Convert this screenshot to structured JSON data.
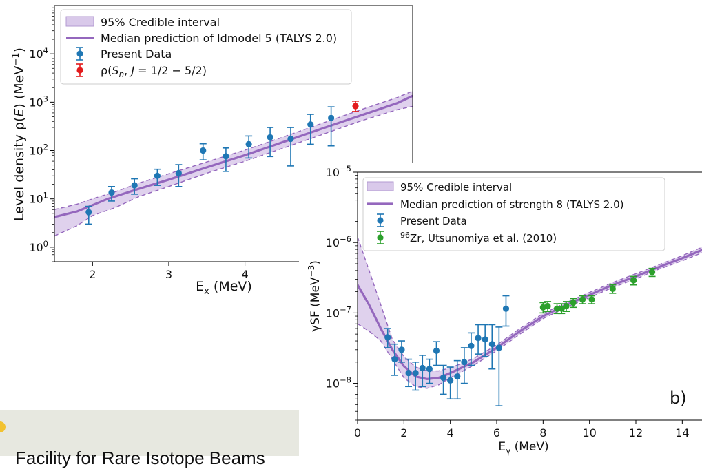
{
  "chart_data": [
    {
      "type": "scatter",
      "title": "",
      "xlabel": "E_x (MeV)",
      "ylabel": "Level density ρ(E) (MeV^-1)",
      "xscale": "linear",
      "yscale": "log",
      "xlim": [
        1.5,
        6.2
      ],
      "ylim": [
        0.5,
        100000
      ],
      "xticks": [
        "2",
        "3",
        "4"
      ],
      "yticks": [
        "10^0",
        "10^1",
        "10^2",
        "10^3",
        "10^4"
      ],
      "legend_position": "upper-left",
      "legend": [
        {
          "label": "95% Credible interval",
          "kind": "band",
          "color": "#cdb8e3"
        },
        {
          "label": "Median prediction of ldmodel 5 (TALYS 2.0)",
          "kind": "line",
          "color": "#9467bd"
        },
        {
          "label": "Present Data",
          "kind": "errorbar",
          "color": "#1f77b4"
        },
        {
          "label": "ρ(S_n, J = 1/2 − 5/2)",
          "kind": "errorbar",
          "color": "#e31a1c"
        }
      ],
      "median": {
        "x": [
          1.5,
          1.8,
          2.2,
          2.6,
          3.0,
          3.5,
          4.0,
          4.5,
          5.0,
          5.5,
          6.0,
          6.2
        ],
        "y": [
          4.2,
          5.5,
          10,
          16,
          25,
          45,
          80,
          150,
          280,
          520,
          960,
          1350
        ]
      },
      "band": {
        "x": [
          1.5,
          1.8,
          2.0,
          2.3,
          2.6,
          3.0,
          3.5,
          4.0,
          4.5,
          5.0,
          5.5,
          6.0,
          6.2
        ],
        "lower": [
          1.7,
          2.8,
          4.5,
          6.6,
          11,
          18,
          34,
          60,
          112,
          210,
          400,
          700,
          820
        ],
        "upper": [
          6.0,
          7.8,
          10,
          14,
          21,
          33,
          58,
          102,
          190,
          360,
          680,
          1250,
          1700
        ]
      },
      "series": [
        {
          "name": "Present Data",
          "color": "#1f77b4",
          "x": [
            1.95,
            2.25,
            2.55,
            2.85,
            3.13,
            3.45,
            3.75,
            4.05,
            4.33,
            4.6,
            4.86,
            5.13
          ],
          "y": [
            5.3,
            13.5,
            19,
            30,
            34,
            100,
            76,
            135,
            188,
            175,
            345,
            470
          ],
          "err_low": [
            3.0,
            9.0,
            12.5,
            19,
            18,
            64,
            37,
            70,
            75,
            48,
            135,
            125
          ],
          "err_high": [
            7.0,
            18,
            26,
            41,
            51,
            138,
            113,
            200,
            300,
            300,
            560,
            800
          ]
        },
        {
          "name": "ρ(S_n, J = 1/2 − 5/2)",
          "color": "#e31a1c",
          "x": [
            5.45
          ],
          "y": [
            830
          ],
          "err_low": [
            640
          ],
          "err_high": [
            1050
          ]
        }
      ]
    },
    {
      "type": "scatter",
      "title": "",
      "xlabel": "E_γ (MeV)",
      "ylabel": "γSF (MeV^-3)",
      "xscale": "linear",
      "yscale": "log",
      "xlim": [
        0,
        15
      ],
      "ylim": [
        3e-09,
        1e-05
      ],
      "xticks": [
        "0",
        "2",
        "4",
        "6",
        "8",
        "10",
        "12",
        "14"
      ],
      "yticks": [
        "10^-8",
        "10^-7",
        "10^-6",
        "10^-5"
      ],
      "legend_position": "upper-left",
      "panel_label": "b)",
      "legend": [
        {
          "label": "95% Credible interval",
          "kind": "band",
          "color": "#cdb8e3"
        },
        {
          "label": "Median prediction of strength 8 (TALYS 2.0)",
          "kind": "line",
          "color": "#9467bd"
        },
        {
          "label": "Present Data",
          "kind": "errorbar",
          "color": "#1f77b4"
        },
        {
          "label": "96Zr, Utsunomiya et al. (2010)",
          "kind": "errorbar",
          "color": "#2ca02c"
        }
      ],
      "median": {
        "x": [
          0,
          0.5,
          1.0,
          1.5,
          2.0,
          2.5,
          3.0,
          3.5,
          4.0,
          5.0,
          6.0,
          7.0,
          8.0,
          9.0,
          10.0,
          11.0,
          12.0,
          13.0,
          14.0,
          15.0
        ],
        "y": [
          2.5e-07,
          1.3e-07,
          6e-08,
          3e-08,
          1.75e-08,
          1.25e-08,
          1.15e-08,
          1.2e-08,
          1.4e-08,
          2e-08,
          3.2e-08,
          5.5e-08,
          9e-08,
          1.3e-07,
          1.8e-07,
          2.5e-07,
          3.3e-07,
          4.5e-07,
          6e-07,
          8.2e-07
        ]
      },
      "band": {
        "x": [
          0,
          0.5,
          1.0,
          1.5,
          2.0,
          2.5,
          3.0,
          3.5,
          4.0,
          5.0,
          6.0,
          7.0,
          8.0,
          9.0,
          10.0,
          11.0,
          12.0,
          13.0,
          14.0,
          15.0
        ],
        "lower": [
          7e-08,
          5.5e-08,
          4e-08,
          2.2e-08,
          1.2e-08,
          9e-09,
          8.5e-09,
          9.5e-09,
          1.2e-08,
          1.8e-08,
          2.9e-08,
          5e-08,
          8.3e-08,
          1.2e-07,
          1.65e-07,
          2.3e-07,
          3.05e-07,
          4.2e-07,
          5.5e-07,
          7.5e-07
        ],
        "upper": [
          1.2e-06,
          4e-07,
          1.3e-07,
          4.2e-08,
          2.4e-08,
          1.7e-08,
          1.5e-08,
          1.5e-08,
          1.65e-08,
          2.25e-08,
          3.5e-08,
          6e-08,
          9.8e-08,
          1.4e-07,
          1.95e-07,
          2.7e-07,
          3.6e-07,
          4.85e-07,
          6.5e-07,
          9e-07
        ]
      },
      "series": [
        {
          "name": "Present Data",
          "color": "#1f77b4",
          "x": [
            1.3,
            1.6,
            1.9,
            2.2,
            2.5,
            2.8,
            3.1,
            3.4,
            3.7,
            4.0,
            4.3,
            4.6,
            4.9,
            5.2,
            5.5,
            5.8,
            6.1,
            6.4
          ],
          "y": [
            4.5e-08,
            2.2e-08,
            3e-08,
            1.4e-08,
            1.4e-08,
            1.65e-08,
            1.6e-08,
            2.9e-08,
            1.2e-08,
            1.1e-08,
            1.25e-08,
            2e-08,
            3.4e-08,
            4.4e-08,
            4.2e-08,
            3.6e-08,
            3.2e-08,
            1.15e-07
          ],
          "err_low": [
            3.2e-08,
            1.3e-08,
            2e-08,
            9e-09,
            8e-09,
            9e-09,
            1e-08,
            1.8e-08,
            7e-09,
            6e-09,
            6e-09,
            1e-08,
            1.8e-08,
            2.6e-08,
            2.4e-08,
            1.6e-08,
            4.8e-09,
            6.5e-08
          ],
          "err_high": [
            6e-08,
            3.6e-08,
            4e-08,
            2.2e-08,
            2e-08,
            2.5e-08,
            2.2e-08,
            3.9e-08,
            1.8e-08,
            1.7e-08,
            2.1e-08,
            3.2e-08,
            5.2e-08,
            6.8e-08,
            6.8e-08,
            6.8e-08,
            6.3e-08,
            1.75e-07
          ]
        },
        {
          "name": "96Zr, Utsunomiya et al. (2010)",
          "color": "#2ca02c",
          "x": [
            8.0,
            8.2,
            8.6,
            8.8,
            9.0,
            9.3,
            9.7,
            10.1,
            11.0,
            11.9,
            12.7
          ],
          "y": [
            1.2e-07,
            1.25e-07,
            1.15e-07,
            1.15e-07,
            1.25e-07,
            1.4e-07,
            1.55e-07,
            1.55e-07,
            2.2e-07,
            2.9e-07,
            3.8e-07
          ],
          "err_low": [
            1e-07,
            1.05e-07,
            9.8e-08,
            9.8e-08,
            1.05e-07,
            1.2e-07,
            1.35e-07,
            1.35e-07,
            1.9e-07,
            2.5e-07,
            3.3e-07
          ],
          "err_high": [
            1.4e-07,
            1.45e-07,
            1.35e-07,
            1.35e-07,
            1.45e-07,
            1.6e-07,
            1.75e-07,
            1.75e-07,
            2.5e-07,
            3.3e-07,
            4.3e-07
          ]
        }
      ]
    }
  ],
  "footer": {
    "text": "Facility for Rare Isotope Beams"
  }
}
